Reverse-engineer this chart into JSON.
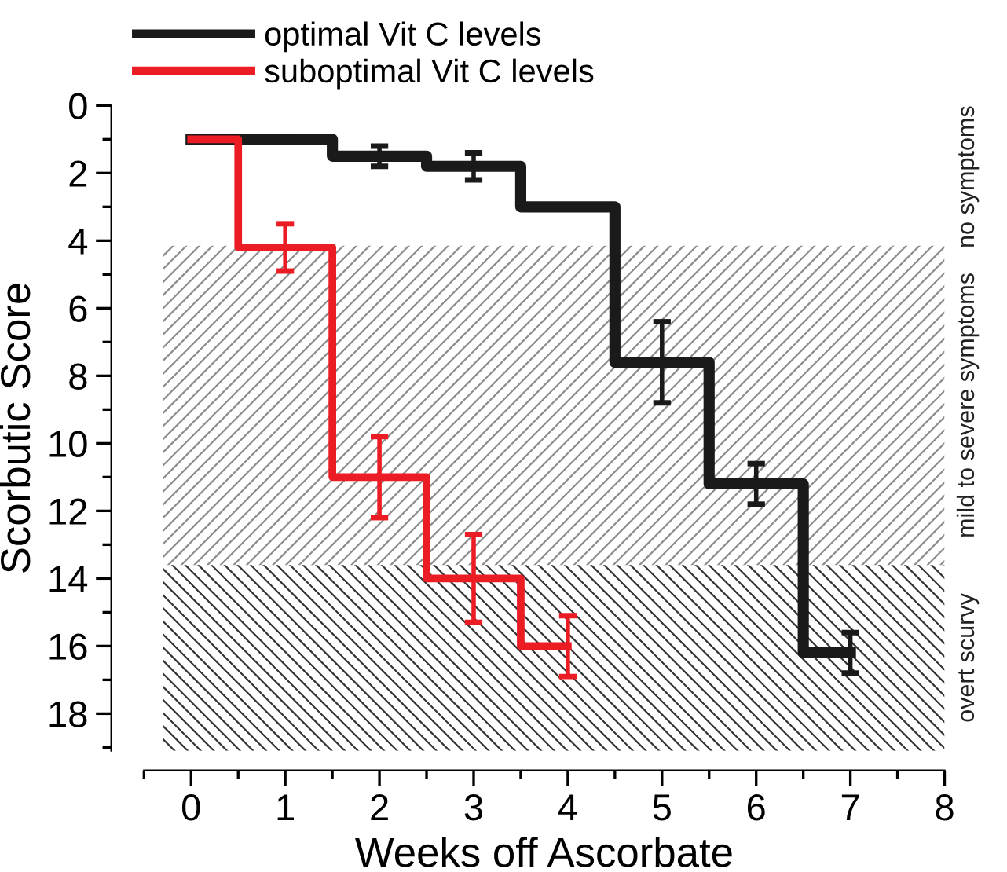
{
  "chart_data": {
    "type": "step",
    "xlabel": "Weeks off Ascorbate",
    "ylabel": "Scorbutic Score",
    "xlim": [
      -0.5,
      8
    ],
    "xticks": [
      0,
      1,
      2,
      3,
      4,
      5,
      6,
      7,
      8
    ],
    "ylim": [
      19.1,
      0
    ],
    "yticks": [
      0,
      2,
      4,
      6,
      8,
      10,
      12,
      14,
      16,
      18
    ],
    "legend": "top left",
    "annotations": [
      "no symptoms"
    ],
    "grid": false,
    "series": [
      {
        "name": "optimal Vit C levels",
        "color": "#1a1a1a",
        "x": [
          0,
          1,
          2,
          3,
          4,
          5,
          6,
          7
        ],
        "values": [
          1,
          1,
          1.5,
          1.8,
          3,
          7.6,
          11.2,
          16.2
        ],
        "errors": [
          null,
          0.05,
          0.3,
          0.4,
          null,
          1.2,
          0.6,
          0.6
        ]
      },
      {
        "name": "suboptimal Vit C levels",
        "color": "#ec1c24",
        "x": [
          0,
          1,
          2,
          3,
          4
        ],
        "values": [
          1,
          4.2,
          11,
          14,
          16
        ],
        "errors": [
          null,
          0.7,
          1.2,
          1.3,
          0.9
        ]
      }
    ],
    "bands": [
      {
        "axis": "y",
        "from": 4.15,
        "to": 13.6,
        "label": "mild to severe symptoms",
        "color": "#8c8c8c"
      },
      {
        "axis": "y",
        "from": 13.6,
        "to": 19.1,
        "label": "overt scurvy",
        "color": "#333333"
      }
    ]
  }
}
